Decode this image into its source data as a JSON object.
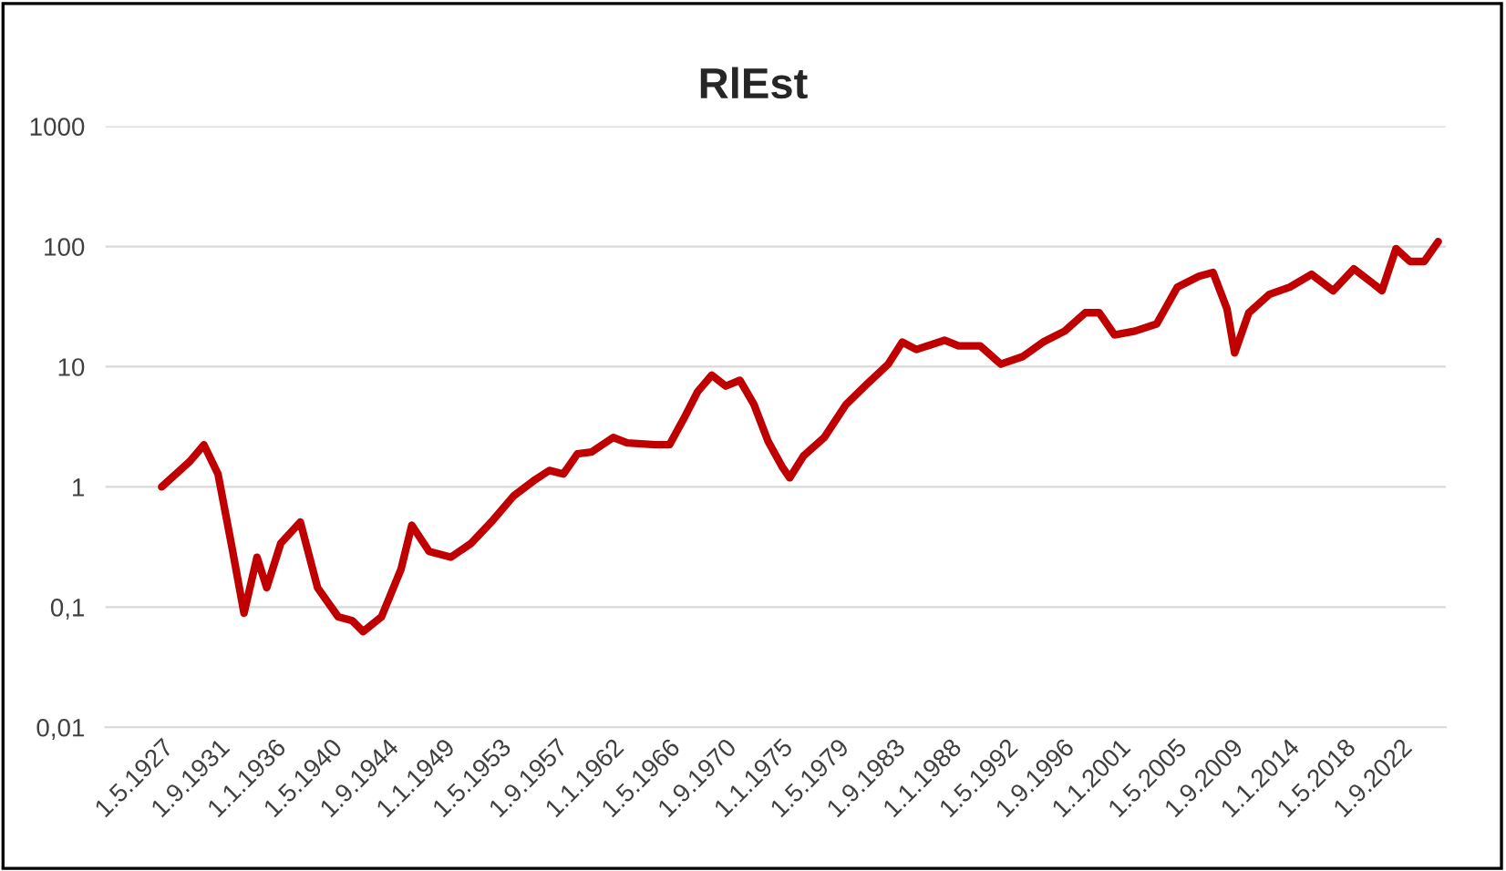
{
  "chart_data": {
    "type": "line",
    "title": "RlEst",
    "series": [
      {
        "color": "#c00000",
        "x": [
          "1927-05",
          "1929-07",
          "1930-08",
          "1931-09",
          "1932-10",
          "1933-09",
          "1934-09",
          "1935-06",
          "1936-07",
          "1938-01",
          "1939-05",
          "1940-12",
          "1942-01",
          "1942-11",
          "1944-04",
          "1945-10",
          "1946-08",
          "1947-12",
          "1949-08",
          "1951-03",
          "1952-11",
          "1954-06",
          "1956-02",
          "1957-03",
          "1958-04",
          "1959-05",
          "1960-06",
          "1962-02",
          "1963-03",
          "1965-05",
          "1966-06",
          "1967-07",
          "1968-08",
          "1969-09",
          "1970-10",
          "1971-11",
          "1972-12",
          "1974-01",
          "1975-02",
          "1975-09",
          "1976-10",
          "1978-05",
          "1980-01",
          "1981-08",
          "1983-04",
          "1984-05",
          "1985-06",
          "1987-08",
          "1988-09",
          "1990-05",
          "1991-12",
          "1993-08",
          "1995-03",
          "1996-11",
          "1998-06",
          "1999-07",
          "2000-09",
          "2002-04",
          "2003-12",
          "2005-07",
          "2007-03",
          "2008-04",
          "2009-05",
          "2009-12",
          "2011-01",
          "2012-08",
          "2014-03",
          "2015-11",
          "2017-07",
          "2019-02",
          "2020-10",
          "2021-04",
          "2022-05",
          "2023-06",
          "2024-07",
          "2025-08"
        ],
        "values": [
          1.0,
          1.63,
          2.24,
          1.28,
          0.31,
          0.089,
          0.26,
          0.145,
          0.34,
          0.51,
          0.145,
          0.083,
          0.077,
          0.0625,
          0.083,
          0.206,
          0.48,
          0.29,
          0.26,
          0.34,
          0.53,
          0.84,
          1.15,
          1.37,
          1.28,
          1.88,
          1.95,
          2.58,
          2.32,
          2.24,
          2.24,
          3.66,
          6.2,
          8.5,
          6.9,
          7.7,
          4.85,
          2.4,
          1.47,
          1.19,
          1.82,
          2.58,
          4.85,
          7.1,
          10.5,
          16.0,
          13.9,
          16.6,
          14.9,
          14.9,
          10.5,
          12.1,
          16.0,
          19.8,
          28.1,
          28.1,
          18.4,
          19.8,
          22.7,
          45.9,
          56.6,
          60.8,
          30.1,
          13.0,
          28.1,
          39.9,
          45.9,
          58.7,
          42.8,
          65.2,
          47.5,
          42.8,
          95.9,
          75.0,
          75.0,
          110
        ]
      }
    ],
    "log": "y",
    "ylim": [
      0.01,
      1000
    ],
    "yticks": [
      {
        "value": 0.01,
        "label": "0,01"
      },
      {
        "value": 0.1,
        "label": "0,1"
      },
      1,
      10,
      100,
      1000
    ],
    "xlim": [
      "1923-01",
      "2026-03"
    ],
    "xticks": [
      {
        "value": "1927-05-01",
        "label": "1.5.1927"
      },
      {
        "value": "1931-09-01",
        "label": "1.9.1931"
      },
      {
        "value": "1936-01-01",
        "label": "1.1.1936"
      },
      {
        "value": "1940-05-01",
        "label": "1.5.1940"
      },
      {
        "value": "1944-09-01",
        "label": "1.9.1944"
      },
      {
        "value": "1949-01-01",
        "label": "1.1.1949"
      },
      {
        "value": "1953-05-01",
        "label": "1.5.1953"
      },
      {
        "value": "1957-09-01",
        "label": "1.9.1957"
      },
      {
        "value": "1962-01-01",
        "label": "1.1.1962"
      },
      {
        "value": "1966-05-01",
        "label": "1.5.1966"
      },
      {
        "value": "1970-09-01",
        "label": "1.9.1970"
      },
      {
        "value": "1975-01-01",
        "label": "1.1.1975"
      },
      {
        "value": "1979-05-01",
        "label": "1.5.1979"
      },
      {
        "value": "1983-09-01",
        "label": "1.9.1983"
      },
      {
        "value": "1988-01-01",
        "label": "1.1.1988"
      },
      {
        "value": "1992-05-01",
        "label": "1.5.1992"
      },
      {
        "value": "1996-09-01",
        "label": "1.9.1996"
      },
      {
        "value": "2001-01-01",
        "label": "1.1.2001"
      },
      {
        "value": "2005-05-01",
        "label": "1.5.2005"
      },
      {
        "value": "2009-09-01",
        "label": "1.9.2009"
      },
      {
        "value": "2014-01-01",
        "label": "1.1.2014"
      },
      {
        "value": "2018-05-01",
        "label": "1.5.2018"
      },
      {
        "value": "2022-09-01",
        "label": "1.9.2022"
      }
    ],
    "grid": "y",
    "line_style": "solid",
    "marker": "none",
    "legend": false
  }
}
